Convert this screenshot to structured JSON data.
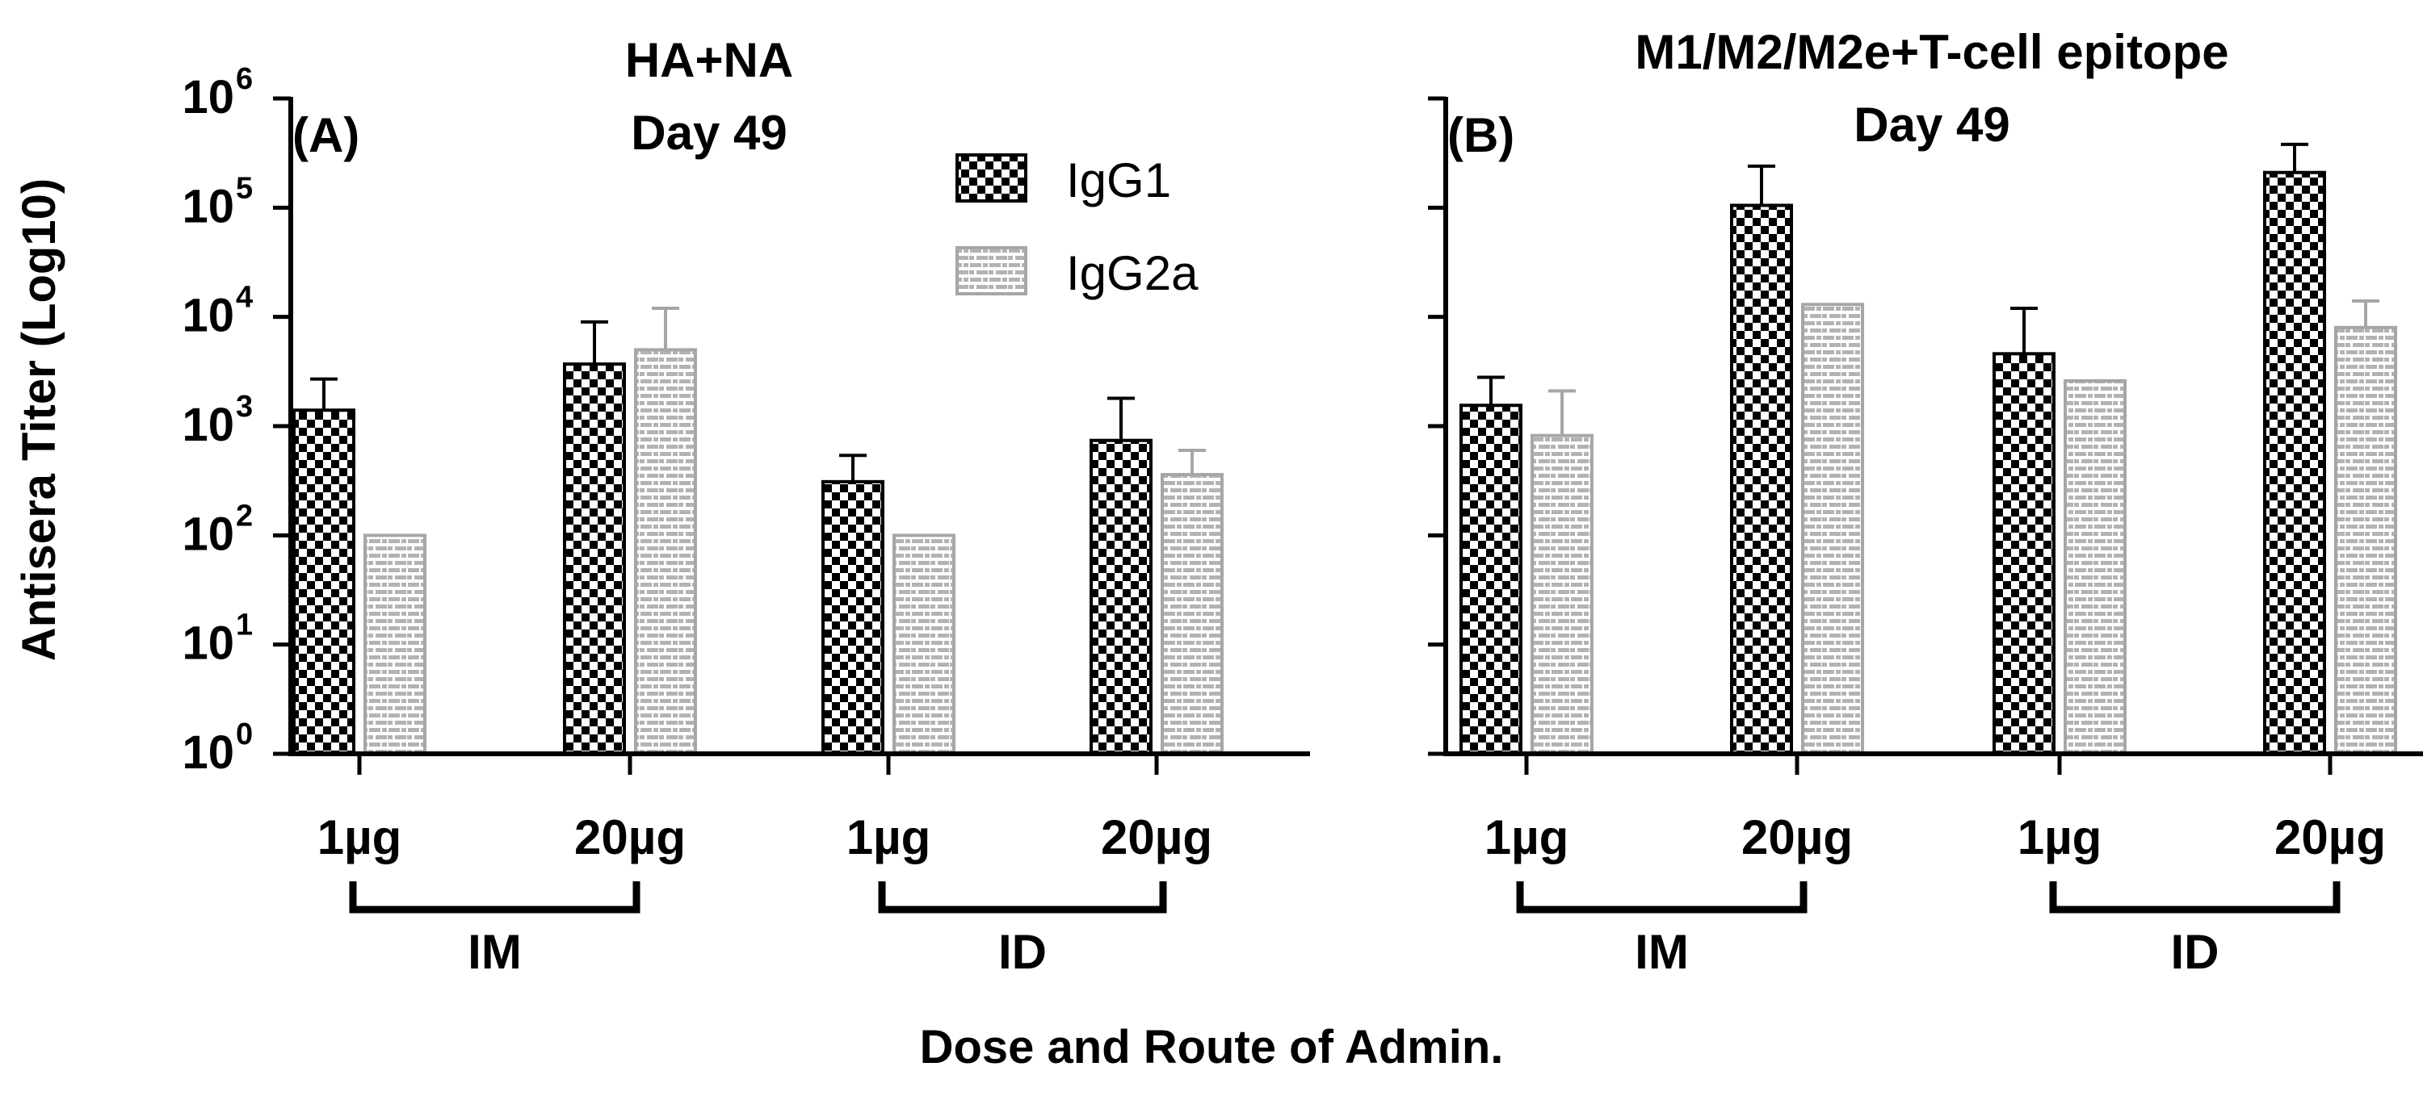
{
  "figure": {
    "ylabel": "Antisera Titer (Log10)",
    "xlabel": "Dose and Route of Admin.",
    "legend": [
      {
        "name": "IgG1",
        "pattern": "checker",
        "color": "#000000"
      },
      {
        "name": "IgG2a",
        "pattern": "brick",
        "color": "#a6a6a6"
      }
    ]
  },
  "chart_data": [
    {
      "type": "bar",
      "panel": "(A)",
      "title": "HA+NA",
      "subtitle": "Day 49",
      "yscale": "log10",
      "ylim": [
        1,
        1000000
      ],
      "ytick_base": "10",
      "ytick_exponents": [
        "0",
        "1",
        "2",
        "3",
        "4",
        "5",
        "6"
      ],
      "categories": [
        "1µg",
        "20µg",
        "1µg",
        "20µg"
      ],
      "groups": [
        {
          "label": "IM",
          "members": [
            0,
            1
          ]
        },
        {
          "label": "ID",
          "members": [
            2,
            3
          ]
        }
      ],
      "series": [
        {
          "name": "IgG1",
          "values": [
            1400,
            3700,
            310,
            740
          ],
          "error_upper": [
            2700,
            9000,
            540,
            1800
          ]
        },
        {
          "name": "IgG2a",
          "values": [
            100,
            5000,
            100,
            360
          ],
          "error_upper": [
            100,
            12000,
            100,
            600
          ]
        }
      ]
    },
    {
      "type": "bar",
      "panel": "(B)",
      "title": "M1/M2/M2e+T-cell epitope",
      "subtitle": "Day 49",
      "yscale": "log10",
      "ylim": [
        1,
        1000000
      ],
      "categories": [
        "1µg",
        "20µg",
        "1µg",
        "20µg"
      ],
      "groups": [
        {
          "label": "IM",
          "members": [
            0,
            1
          ]
        },
        {
          "label": "ID",
          "members": [
            2,
            3
          ]
        }
      ],
      "series": [
        {
          "name": "IgG1",
          "values": [
            1550,
            105000,
            4600,
            210000
          ],
          "error_upper": [
            2800,
            240000,
            12000,
            380000
          ]
        },
        {
          "name": "IgG2a",
          "values": [
            820,
            13000,
            2600,
            8000
          ],
          "error_upper": [
            2100,
            13000,
            2600,
            14000
          ]
        }
      ]
    }
  ]
}
